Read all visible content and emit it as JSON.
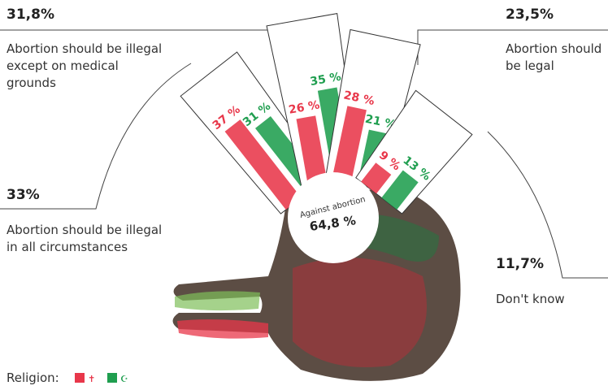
{
  "chart_data": {
    "type": "hand",
    "categories": [
      "Abortion should be illegal in all circumstances",
      "Abortion should be illegal except on medical grounds",
      "Abortion should be legal",
      "Don't know"
    ],
    "totals": [
      "33%",
      "31,8%",
      "23,5%",
      "11,7%"
    ],
    "series": [
      {
        "name": "✝",
        "color": "#e8374a",
        "values": [
          37,
          26,
          28,
          9
        ],
        "value_labels": [
          "37 %",
          "26 %",
          "28 %",
          "9 %"
        ]
      },
      {
        "name": "☪",
        "color": "#1f9e4f",
        "values": [
          31,
          35,
          21,
          13
        ],
        "value_labels": [
          "31 %",
          "35 %",
          "21 %",
          "13 %"
        ]
      }
    ],
    "summary": {
      "label": "Against abortion",
      "value_label": "64,8 %"
    },
    "legend_title": "Religion:"
  }
}
